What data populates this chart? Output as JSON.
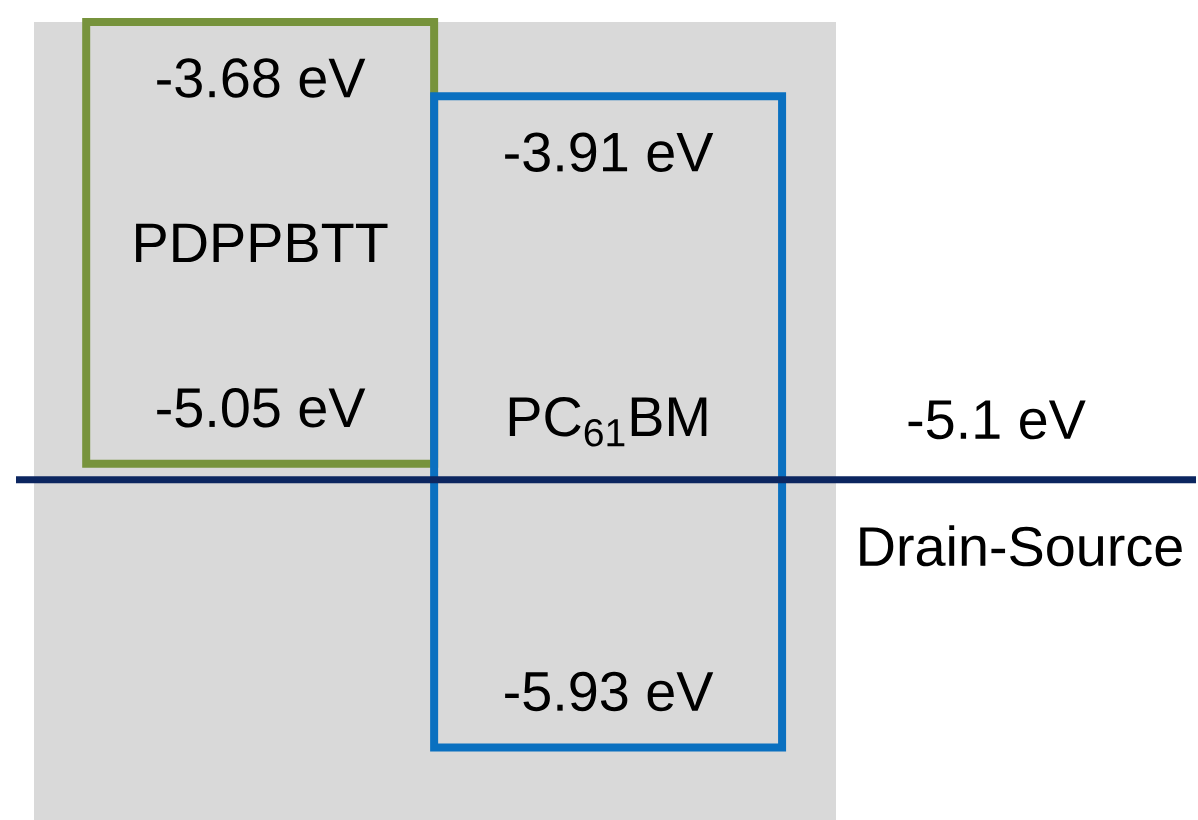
{
  "chart_data": {
    "type": "other",
    "categories": [
      "PDPPBTT",
      "PC$_{61}$BM"
    ],
    "colors": [
      "#77933c",
      "#0a70c0"
    ],
    "series": [
      {
        "values": [
          -3.68,
          -3.91
        ],
        "value_labels": [
          "-3.68 eV",
          "-3.91 eV"
        ]
      },
      {
        "values": [
          -5.05,
          -5.93
        ],
        "value_labels": [
          "-5.05 eV",
          "-5.93 eV"
        ]
      },
      {
        "type": "line",
        "color": "#0c2660",
        "values": [
          null,
          -5.1
        ],
        "value_labels": [
          null,
          "-5.1 eV"
        ]
      }
    ],
    "annotations": [
      "Drain-Source"
    ]
  }
}
